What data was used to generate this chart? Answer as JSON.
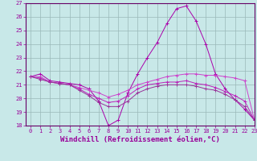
{
  "xlabel": "Windchill (Refroidissement éolien,°C)",
  "xlim": [
    -0.5,
    23
  ],
  "ylim": [
    18,
    27
  ],
  "yticks": [
    18,
    19,
    20,
    21,
    22,
    23,
    24,
    25,
    26,
    27
  ],
  "xticks": [
    0,
    1,
    2,
    3,
    4,
    5,
    6,
    7,
    8,
    9,
    10,
    11,
    12,
    13,
    14,
    15,
    16,
    17,
    18,
    19,
    20,
    21,
    22,
    23
  ],
  "bg_color": "#c8e8e8",
  "lines": [
    {
      "x": [
        0,
        1,
        2,
        3,
        4,
        5,
        6,
        7,
        8,
        9,
        10,
        11,
        12,
        13,
        14,
        15,
        16,
        17,
        18,
        19,
        20,
        21,
        22,
        23
      ],
      "y": [
        21.6,
        21.8,
        21.3,
        21.2,
        21.1,
        21.0,
        20.7,
        19.8,
        18.0,
        18.4,
        20.4,
        21.8,
        23.0,
        24.1,
        25.5,
        26.6,
        26.8,
        25.7,
        24.0,
        21.8,
        20.7,
        19.9,
        19.2,
        18.4
      ],
      "color": "#aa00aa"
    },
    {
      "x": [
        0,
        1,
        2,
        3,
        4,
        5,
        6,
        7,
        8,
        9,
        10,
        11,
        12,
        13,
        14,
        15,
        16,
        17,
        18,
        19,
        20,
        21,
        22,
        23
      ],
      "y": [
        21.6,
        21.6,
        21.2,
        21.1,
        21.0,
        20.8,
        20.6,
        20.4,
        20.1,
        20.3,
        20.6,
        21.0,
        21.2,
        21.4,
        21.6,
        21.7,
        21.8,
        21.8,
        21.7,
        21.7,
        21.6,
        21.5,
        21.3,
        18.4
      ],
      "color": "#cc44cc"
    },
    {
      "x": [
        0,
        1,
        2,
        3,
        4,
        5,
        6,
        7,
        8,
        9,
        10,
        11,
        12,
        13,
        14,
        15,
        16,
        17,
        18,
        19,
        20,
        21,
        22,
        23
      ],
      "y": [
        21.6,
        21.5,
        21.2,
        21.1,
        21.0,
        20.7,
        20.3,
        20.0,
        19.7,
        19.8,
        20.2,
        20.7,
        21.0,
        21.1,
        21.2,
        21.2,
        21.3,
        21.1,
        21.0,
        20.8,
        20.5,
        20.2,
        19.8,
        18.4
      ],
      "color": "#bb22bb"
    },
    {
      "x": [
        0,
        1,
        2,
        3,
        4,
        5,
        6,
        7,
        8,
        9,
        10,
        11,
        12,
        13,
        14,
        15,
        16,
        17,
        18,
        19,
        20,
        21,
        22,
        23
      ],
      "y": [
        21.6,
        21.4,
        21.2,
        21.1,
        21.0,
        20.6,
        20.2,
        19.7,
        19.4,
        19.4,
        19.8,
        20.4,
        20.7,
        20.9,
        21.0,
        21.0,
        21.0,
        20.9,
        20.7,
        20.6,
        20.3,
        19.9,
        19.4,
        18.4
      ],
      "color": "#993399"
    }
  ],
  "grid_color": "#9ab8b8",
  "tick_fontsize": 5,
  "xlabel_fontsize": 6.5,
  "tick_color": "#990099",
  "spine_color": "#660066"
}
